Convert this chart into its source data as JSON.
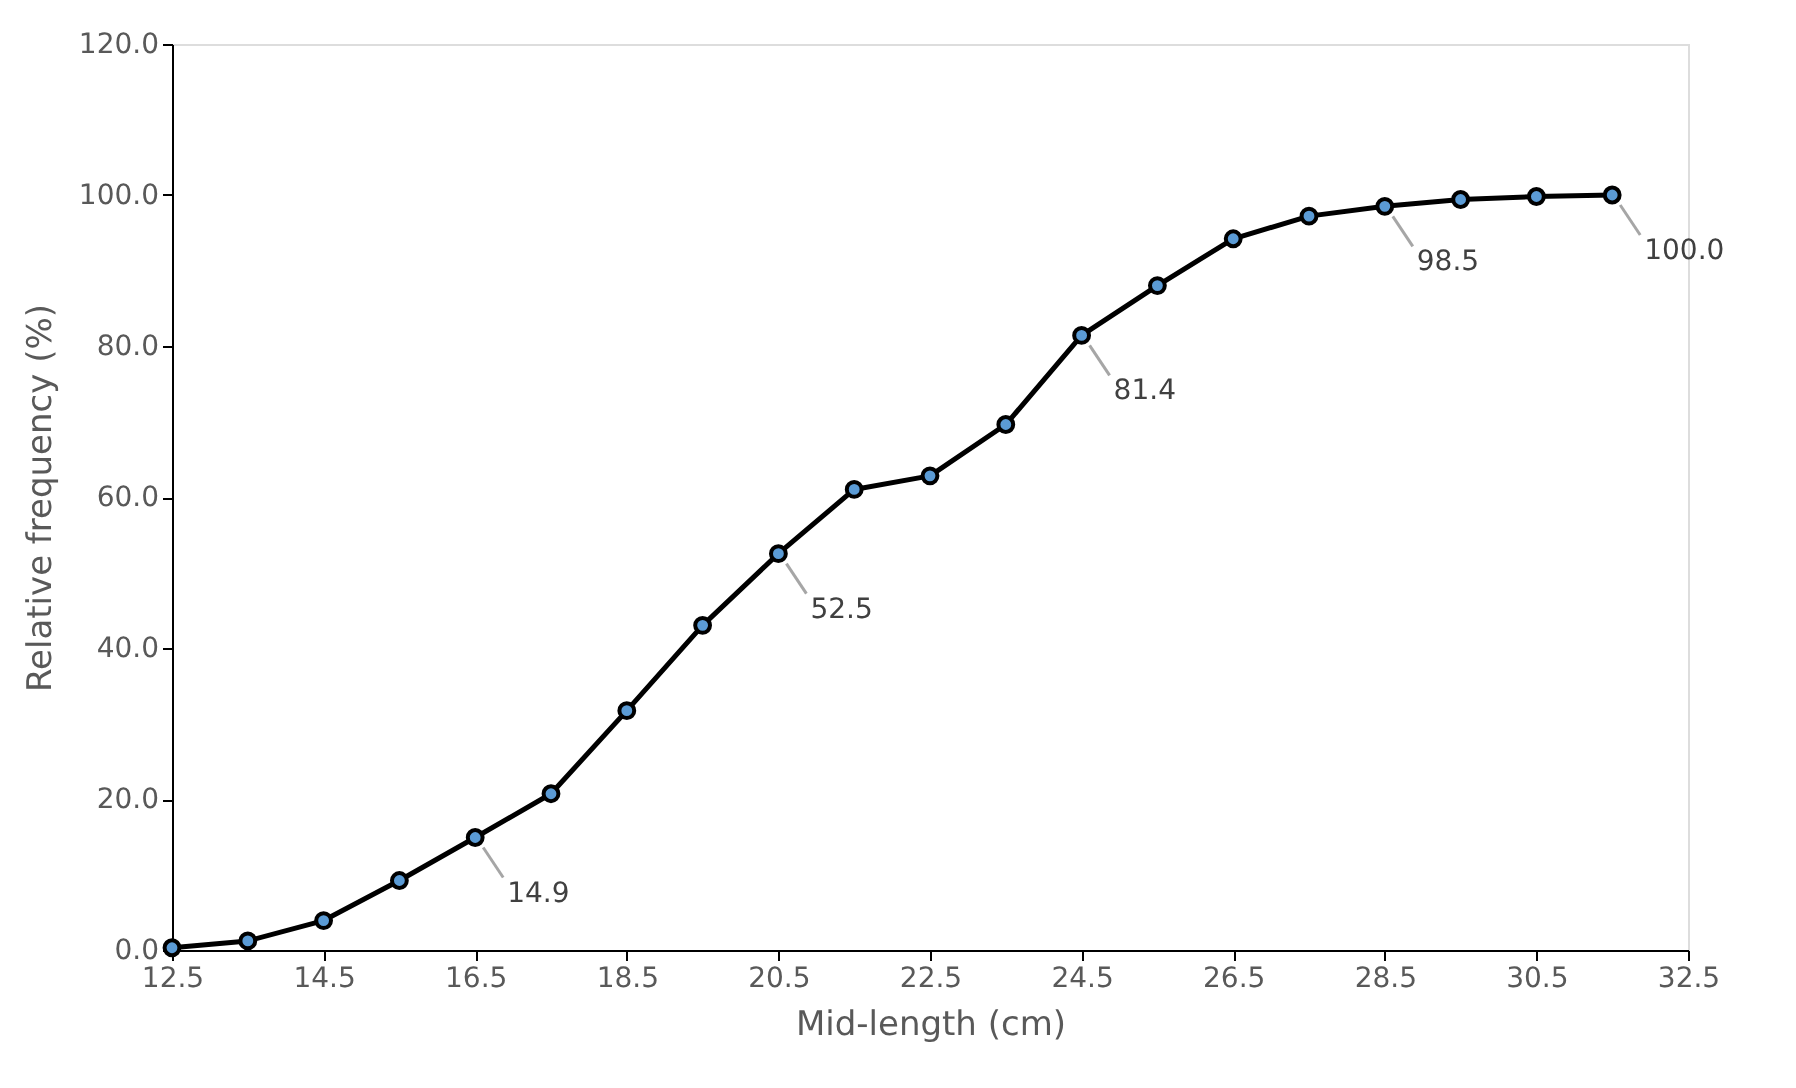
{
  "chart_data": {
    "type": "line",
    "xlabel": "Mid-length (cm)",
    "ylabel": "Relative frequency (%)",
    "x": [
      12.5,
      13.5,
      14.5,
      15.5,
      16.5,
      17.5,
      18.5,
      19.5,
      20.5,
      21.5,
      22.5,
      23.5,
      24.5,
      25.5,
      26.5,
      27.5,
      28.5,
      29.5,
      30.5,
      31.5
    ],
    "series": [
      {
        "color": "#000000",
        "values": [
          0.3,
          1.2,
          3.9,
          9.2,
          14.9,
          20.7,
          31.7,
          43.0,
          52.5,
          61.0,
          62.8,
          69.6,
          81.4,
          88.0,
          94.2,
          97.2,
          98.5,
          99.4,
          99.8,
          100.0
        ]
      }
    ],
    "xlim": [
      12.5,
      32.5
    ],
    "xticks": [
      12.5,
      14.5,
      16.5,
      18.5,
      20.5,
      22.5,
      24.5,
      26.5,
      28.5,
      30.5,
      32.5
    ],
    "ylim": [
      0,
      120
    ],
    "yticks": [
      {
        "value": 0,
        "label": "0.0"
      },
      {
        "value": 20,
        "label": "20.0"
      },
      {
        "value": 40,
        "label": "40.0"
      },
      {
        "value": 60,
        "label": "60.0"
      },
      {
        "value": 80,
        "label": "80.0"
      },
      {
        "value": 100,
        "label": "100.0"
      },
      {
        "value": 120,
        "label": "120.0"
      }
    ],
    "annotations": [
      {
        "text": "14.9",
        "x": 16.5,
        "y": 14.9
      },
      {
        "text": "52.5",
        "x": 20.5,
        "y": 52.5
      },
      {
        "text": "81.4",
        "x": 24.5,
        "y": 81.4
      },
      {
        "text": "98.5",
        "x": 28.5,
        "y": 98.5
      },
      {
        "text": "100.0",
        "x": 31.5,
        "y": 100.0
      }
    ],
    "grid": false,
    "marker": "circle",
    "line_style": "solid"
  }
}
